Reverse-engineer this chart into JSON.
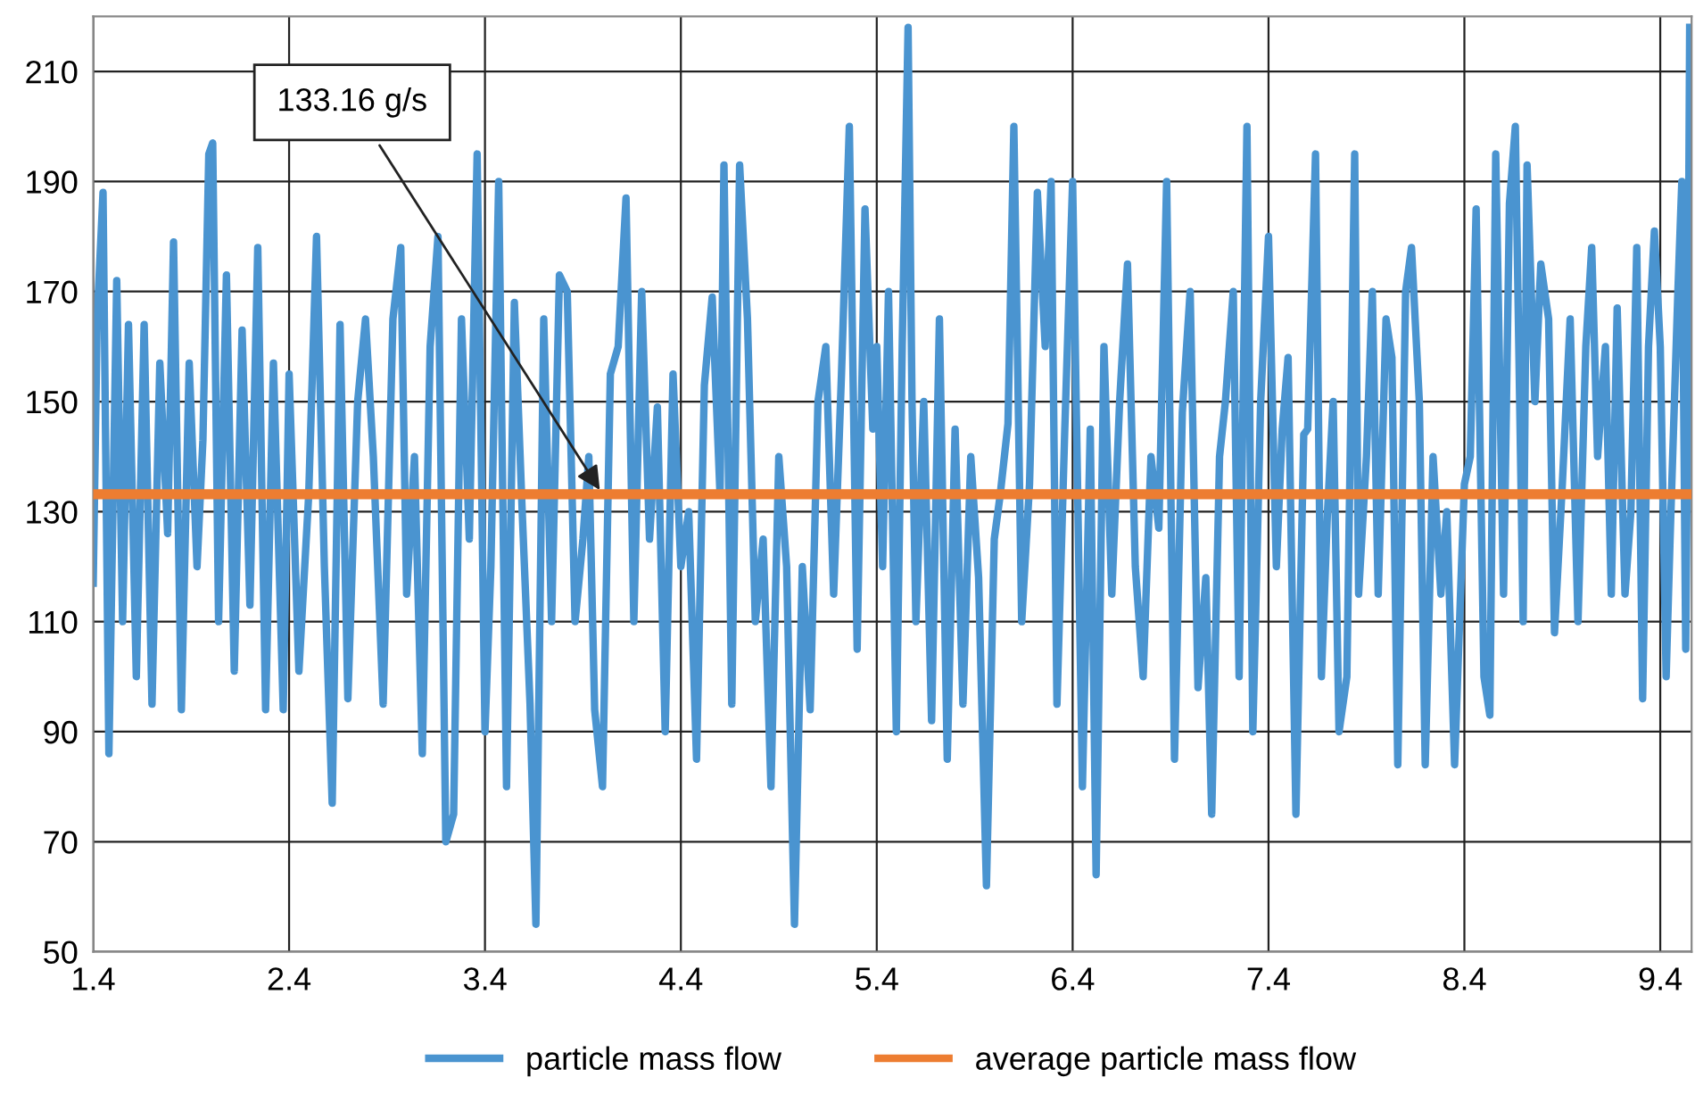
{
  "chart_data": {
    "type": "line",
    "xlim": [
      1.4,
      9.56
    ],
    "xticks": [
      1.4,
      2.4,
      3.4,
      4.4,
      5.4,
      6.4,
      7.4,
      8.4,
      9.4
    ],
    "ylim": [
      50,
      220
    ],
    "yticks": [
      50,
      70,
      90,
      110,
      130,
      150,
      170,
      190,
      210
    ],
    "grid": true,
    "legend": "bottom",
    "marker": "none",
    "line_style": "solid",
    "annotations": [
      {
        "text": "133.16 g/s",
        "x": 4.0,
        "y": 133.16
      }
    ],
    "series": [
      {
        "name": "particle mass flow",
        "color": "#4a94d0",
        "x": [
          1.4,
          1.42,
          1.45,
          1.48,
          1.52,
          1.55,
          1.58,
          1.62,
          1.66,
          1.7,
          1.74,
          1.78,
          1.81,
          1.85,
          1.89,
          1.93,
          1.96,
          1.99,
          2.01,
          2.04,
          2.08,
          2.12,
          2.16,
          2.2,
          2.24,
          2.28,
          2.32,
          2.37,
          2.4,
          2.45,
          2.5,
          2.54,
          2.58,
          2.62,
          2.66,
          2.7,
          2.75,
          2.79,
          2.83,
          2.88,
          2.93,
          2.97,
          3.0,
          3.04,
          3.08,
          3.12,
          3.16,
          3.2,
          3.24,
          3.28,
          3.32,
          3.36,
          3.4,
          3.43,
          3.47,
          3.51,
          3.55,
          3.59,
          3.63,
          3.66,
          3.7,
          3.74,
          3.78,
          3.82,
          3.86,
          3.9,
          3.93,
          3.96,
          4.0,
          4.04,
          4.08,
          4.12,
          4.16,
          4.2,
          4.24,
          4.28,
          4.32,
          4.36,
          4.4,
          4.44,
          4.48,
          4.52,
          4.56,
          4.6,
          4.62,
          4.66,
          4.7,
          4.74,
          4.78,
          4.82,
          4.86,
          4.9,
          4.94,
          4.98,
          5.02,
          5.06,
          5.1,
          5.14,
          5.18,
          5.22,
          5.26,
          5.3,
          5.34,
          5.38,
          5.4,
          5.43,
          5.46,
          5.5,
          5.53,
          5.56,
          5.58,
          5.6,
          5.64,
          5.68,
          5.72,
          5.76,
          5.8,
          5.84,
          5.88,
          5.92,
          5.96,
          6.0,
          6.03,
          6.07,
          6.1,
          6.14,
          6.18,
          6.22,
          6.26,
          6.29,
          6.32,
          6.36,
          6.4,
          6.45,
          6.49,
          6.52,
          6.56,
          6.6,
          6.64,
          6.68,
          6.72,
          6.76,
          6.8,
          6.84,
          6.88,
          6.92,
          6.96,
          7.0,
          7.04,
          7.08,
          7.11,
          7.15,
          7.18,
          7.22,
          7.25,
          7.29,
          7.32,
          7.36,
          7.4,
          7.44,
          7.47,
          7.5,
          7.54,
          7.58,
          7.6,
          7.64,
          7.67,
          7.7,
          7.73,
          7.76,
          7.8,
          7.84,
          7.86,
          7.9,
          7.93,
          7.96,
          8.0,
          8.03,
          8.06,
          8.1,
          8.13,
          8.17,
          8.2,
          8.24,
          8.28,
          8.31,
          8.35,
          8.4,
          8.43,
          8.46,
          8.5,
          8.53,
          8.56,
          8.6,
          8.63,
          8.66,
          8.7,
          8.72,
          8.76,
          8.79,
          8.83,
          8.86,
          8.9,
          8.94,
          8.98,
          9.02,
          9.05,
          9.08,
          9.12,
          9.15,
          9.18,
          9.22,
          9.25,
          9.28,
          9.31,
          9.34,
          9.37,
          9.4,
          9.43,
          9.45,
          9.49,
          9.51,
          9.53,
          9.54,
          9.55
        ],
        "values": [
          117,
          165,
          188,
          86,
          172,
          110,
          164,
          100,
          164,
          95,
          157,
          126,
          179,
          94,
          157,
          120,
          143,
          195,
          197,
          110,
          173,
          101,
          163,
          113,
          178,
          94,
          157,
          94,
          155,
          101,
          133,
          180,
          120,
          77,
          164,
          96,
          150,
          165,
          140,
          95,
          165,
          178,
          115,
          140,
          86,
          160,
          180,
          70,
          75,
          165,
          125,
          195,
          90,
          120,
          190,
          80,
          168,
          130,
          95,
          55,
          165,
          110,
          173,
          170,
          110,
          125,
          140,
          94,
          80,
          155,
          160,
          187,
          110,
          170,
          125,
          149,
          90,
          155,
          120,
          130,
          85,
          153,
          169,
          133,
          193,
          95,
          193,
          165,
          110,
          125,
          80,
          140,
          120,
          55,
          120,
          94,
          150,
          160,
          115,
          155,
          200,
          105,
          185,
          145,
          160,
          120,
          170,
          90,
          160,
          218,
          150,
          110,
          150,
          92,
          165,
          85,
          145,
          95,
          140,
          118,
          62,
          125,
          133,
          146,
          200,
          110,
          135,
          188,
          160,
          190,
          95,
          145,
          190,
          80,
          145,
          64,
          160,
          115,
          150,
          175,
          120,
          100,
          140,
          127,
          190,
          85,
          148,
          170,
          98,
          118,
          75,
          140,
          150,
          170,
          100,
          200,
          90,
          150,
          180,
          120,
          145,
          158,
          75,
          144,
          145,
          195,
          100,
          129,
          150,
          90,
          100,
          195,
          115,
          140,
          170,
          115,
          165,
          158,
          84,
          170,
          178,
          150,
          84,
          140,
          115,
          130,
          84,
          135,
          140,
          185,
          100,
          93,
          195,
          115,
          186,
          200,
          110,
          193,
          150,
          175,
          165,
          108,
          135,
          165,
          110,
          160,
          178,
          140,
          160,
          115,
          167,
          115,
          130,
          178,
          96,
          160,
          181,
          160,
          100,
          125,
          170,
          190,
          105,
          150,
          218
        ]
      },
      {
        "name": "average particle mass flow",
        "color": "#ed7d31",
        "x": [
          1.4,
          9.56
        ],
        "values": [
          133.16,
          133.16
        ]
      }
    ]
  }
}
